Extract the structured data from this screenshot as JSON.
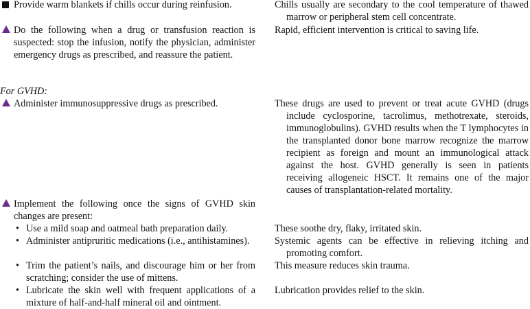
{
  "colors": {
    "triangle_marker": "#6b2d8e",
    "square_marker": "#111111"
  },
  "rows": [
    {
      "marker": "square",
      "action": "Provide warm blankets if chills occur during reinfusion.",
      "rationale": "Chills usually are secondary to the cool temperature of thawed marrow or peripheral stem cell concentrate."
    },
    {
      "marker": "triangle",
      "action": "Do the following when a drug or transfusion reaction is suspected: stop the infusion, notify the physician, administer emergency drugs as prescribed, and reassure the patient.",
      "rationale": "Rapid, efficient intervention is critical to saving life."
    }
  ],
  "section_heading": "For GVHD:",
  "gvhd": [
    {
      "marker": "triangle",
      "action": "Administer immunosuppressive drugs as prescribed.",
      "rationale": "These drugs are used to prevent or treat acute GVHD (drugs include cyclosporine, tacrolimus, methotrexate, steroids, immunoglobulins). GVHD results when the T lymphocytes in the transplanted donor bone marrow recognize the marrow recipient as foreign and mount an immunological attack against the host. GVHD generally is seen in patients receiving allogeneic HSCT. It remains one of the major causes of transplantation-related mortality."
    },
    {
      "marker": "triangle",
      "action": "Implement the following once the signs of GVHD skin changes are present:",
      "subitems": [
        {
          "text": "Use a mild soap and oatmeal bath preparation daily.",
          "rationale": "These soothe dry, flaky, irritated skin."
        },
        {
          "text": "Administer antipruritic medications (i.e., antihistamines).",
          "rationale": "Systemic agents can be effective in relieving itching and promoting comfort."
        },
        {
          "text": "Trim the patient’s nails, and discourage him or her from scratching; consider the use of mittens.",
          "rationale": "This measure reduces skin trauma."
        },
        {
          "text": "Lubricate the skin well with frequent applications of a mixture of half-and-half mineral oil and ointment.",
          "rationale": "Lubrication provides relief to the skin."
        }
      ]
    }
  ]
}
